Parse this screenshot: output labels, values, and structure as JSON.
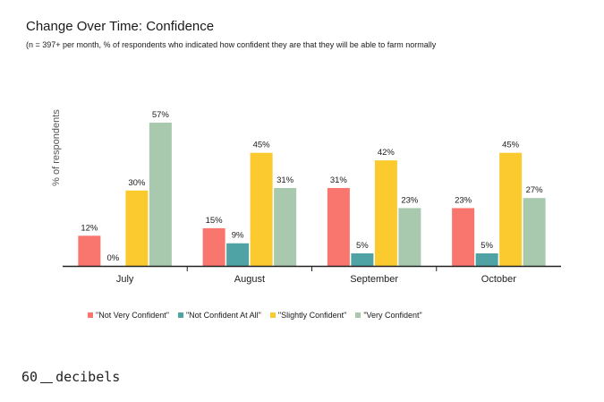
{
  "header": {
    "title": "Change Over Time: Confidence",
    "subtitle": "(n = 397+ per month, % of respondents who indicated how confident they are that they will be able to farm normally"
  },
  "brand": {
    "left": "60",
    "right": "decibels"
  },
  "chart_data": {
    "type": "bar",
    "title": "Change Over Time: Confidence",
    "xlabel": "",
    "ylabel": "% of respondents",
    "ylim": [
      0,
      57
    ],
    "grid": false,
    "legend_position": "bottom",
    "categories": [
      "July",
      "August",
      "September",
      "October"
    ],
    "series": [
      {
        "name": "\"Not Very Confident\"",
        "color": "#f8766d",
        "values": [
          12,
          15,
          31,
          23
        ]
      },
      {
        "name": "\"Not Confident At All\"",
        "color": "#4fa3a5",
        "values": [
          0,
          9,
          5,
          5
        ]
      },
      {
        "name": "\"Slightly Confident\"",
        "color": "#fbca2e",
        "values": [
          30,
          45,
          42,
          45
        ]
      },
      {
        "name": "\"Very Confident\"",
        "color": "#a8c9ad",
        "values": [
          57,
          31,
          23,
          27
        ]
      }
    ]
  }
}
